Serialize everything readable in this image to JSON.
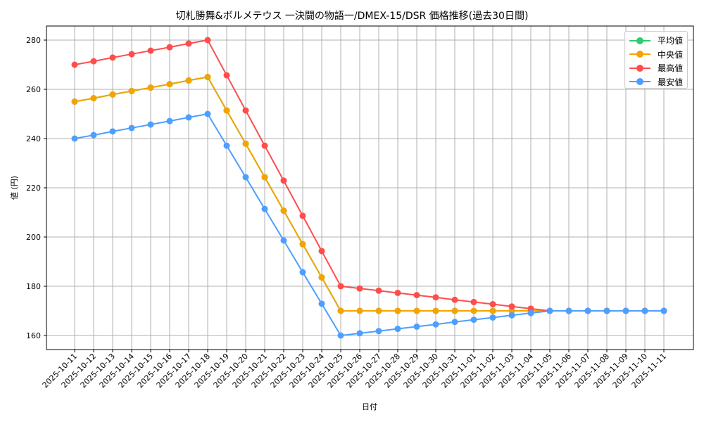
{
  "chart_data": {
    "type": "line",
    "title": "切札勝舞&ボルメテウス 一決闘の物語一/DMEX-15/DSR 価格推移(過去30日間)",
    "xlabel": "日付",
    "ylabel": "値 (円)",
    "ylim": [
      154,
      286
    ],
    "yticks": [
      160,
      180,
      200,
      220,
      240,
      260,
      280
    ],
    "grid": true,
    "legend_position": "upper right",
    "x": [
      "2025-10-11",
      "2025-10-12",
      "2025-10-13",
      "2025-10-14",
      "2025-10-15",
      "2025-10-16",
      "2025-10-17",
      "2025-10-18",
      "2025-10-19",
      "2025-10-20",
      "2025-10-21",
      "2025-10-22",
      "2025-10-23",
      "2025-10-24",
      "2025-10-25",
      "2025-10-26",
      "2025-10-27",
      "2025-10-28",
      "2025-10-29",
      "2025-10-30",
      "2025-10-31",
      "2025-11-01",
      "2025-11-02",
      "2025-11-03",
      "2025-11-04",
      "2025-11-05",
      "2025-11-06",
      "2025-11-07",
      "2025-11-08",
      "2025-11-09",
      "2025-11-10",
      "2025-11-11"
    ],
    "series": [
      {
        "name": "平均値",
        "color": "#2ecc71",
        "values": [
          255,
          256.4,
          257.9,
          259.3,
          260.7,
          262.1,
          263.6,
          265,
          251.4,
          237.9,
          224.3,
          210.7,
          197.1,
          183.6,
          170,
          170,
          170,
          170,
          170,
          170,
          170,
          170,
          170,
          170,
          170,
          170,
          170,
          170,
          170,
          170,
          170,
          170
        ]
      },
      {
        "name": "中央値",
        "color": "#f5a300",
        "values": [
          255,
          256.4,
          257.9,
          259.3,
          260.7,
          262.1,
          263.6,
          265,
          251.4,
          237.9,
          224.3,
          210.7,
          197.1,
          183.6,
          170,
          170,
          170,
          170,
          170,
          170,
          170,
          170,
          170,
          170,
          170,
          170,
          170,
          170,
          170,
          170,
          170,
          170
        ]
      },
      {
        "name": "最高値",
        "color": "#ff4d4d",
        "values": [
          270,
          271.4,
          272.9,
          274.3,
          275.7,
          277.1,
          278.6,
          280,
          265.7,
          251.4,
          237.1,
          222.9,
          208.6,
          194.3,
          180,
          179.1,
          178.2,
          177.3,
          176.4,
          175.5,
          174.5,
          173.6,
          172.7,
          171.8,
          170.9,
          170,
          170,
          170,
          170,
          170,
          170,
          170
        ]
      },
      {
        "name": "最安値",
        "color": "#4d9fff",
        "values": [
          240,
          241.4,
          242.9,
          244.3,
          245.7,
          247.1,
          248.6,
          250,
          237.1,
          224.3,
          211.4,
          198.6,
          185.7,
          172.9,
          160,
          160.9,
          161.8,
          162.7,
          163.6,
          164.5,
          165.5,
          166.4,
          167.3,
          168.2,
          169.1,
          170,
          170,
          170,
          170,
          170,
          170,
          170
        ]
      }
    ]
  }
}
